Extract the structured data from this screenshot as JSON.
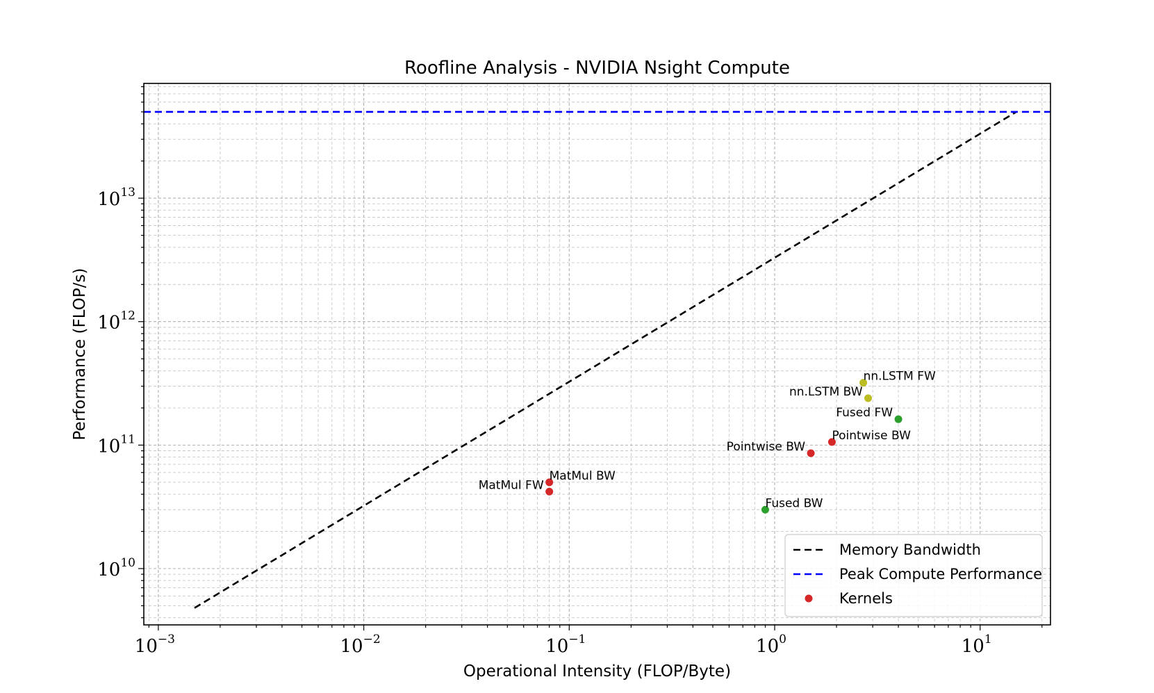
{
  "chart_data": {
    "type": "scatter",
    "title": "Roofline Analysis - NVIDIA Nsight Compute",
    "xlabel": "Operational Intensity (FLOP/Byte)",
    "ylabel": "Performance (FLOP/s)",
    "xscale": "log",
    "yscale": "log",
    "xlim": [
      0.00085,
      22
    ],
    "ylim": [
      3500000000.0,
      85000000000000.0
    ],
    "grid": true,
    "x_ticks": [
      {
        "base": "10",
        "exp": "−3",
        "value": 0.001
      },
      {
        "base": "10",
        "exp": "−2",
        "value": 0.01
      },
      {
        "base": "10",
        "exp": "−1",
        "value": 0.1
      },
      {
        "base": "10",
        "exp": "0",
        "value": 1
      },
      {
        "base": "10",
        "exp": "1",
        "value": 10
      }
    ],
    "y_ticks": [
      {
        "base": "10",
        "exp": "10",
        "value": 10000000000.0
      },
      {
        "base": "10",
        "exp": "11",
        "value": 100000000000.0
      },
      {
        "base": "10",
        "exp": "12",
        "value": 1000000000000.0
      },
      {
        "base": "10",
        "exp": "13",
        "value": 10000000000000.0
      }
    ],
    "lines": [
      {
        "name": "Memory Bandwidth",
        "color": "#000000",
        "style": "dashed",
        "x": [
          0.0015,
          15
        ],
        "y": [
          4800000000.0,
          50000000000000.0
        ]
      },
      {
        "name": "Peak Compute Performance",
        "color": "#0000ff",
        "style": "dashed",
        "x": [
          0.00085,
          22
        ],
        "y": [
          50000000000000.0,
          50000000000000.0
        ]
      }
    ],
    "points": [
      {
        "label": "MatMul FW",
        "x": 0.08,
        "y": 42000000000.0,
        "color": "#d62728",
        "label_side": "left"
      },
      {
        "label": "MatMul BW",
        "x": 0.08,
        "y": 50000000000.0,
        "color": "#d62728",
        "label_side": "right"
      },
      {
        "label": "Pointwise BW",
        "x": 1.5,
        "y": 86000000000.0,
        "color": "#d62728",
        "label_side": "left"
      },
      {
        "label": "Pointwise BW",
        "x": 1.9,
        "y": 106000000000.0,
        "color": "#d62728",
        "label_side": "right"
      },
      {
        "label": "Fused BW",
        "x": 0.9,
        "y": 30000000000.0,
        "color": "#2ca02c",
        "label_side": "right"
      },
      {
        "label": "Fused FW",
        "x": 4.0,
        "y": 162000000000.0,
        "color": "#2ca02c",
        "label_side": "left"
      },
      {
        "label": "nn.LSTM FW",
        "x": 2.7,
        "y": 320000000000.0,
        "color": "#bcbd22",
        "label_side": "right"
      },
      {
        "label": "nn.LSTM BW",
        "x": 2.85,
        "y": 240000000000.0,
        "color": "#bcbd22",
        "label_side": "left"
      }
    ],
    "legend": {
      "placement": "lower-right",
      "entries": [
        {
          "label": "Memory Bandwidth",
          "kind": "line",
          "color": "#000000"
        },
        {
          "label": "Peak Compute Performance",
          "kind": "line",
          "color": "#0000ff"
        },
        {
          "label": "Kernels",
          "kind": "marker",
          "color": "#d62728"
        }
      ]
    }
  }
}
